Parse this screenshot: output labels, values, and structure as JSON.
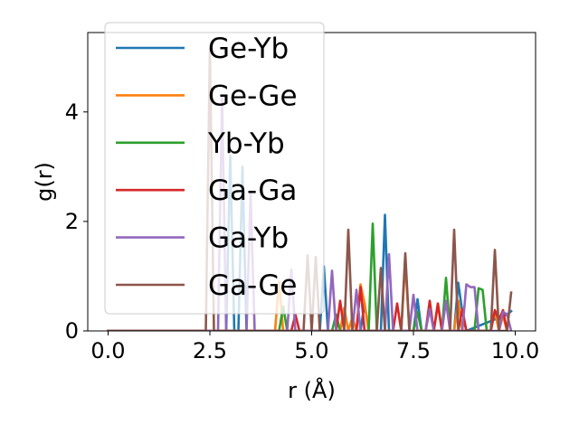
{
  "chart_data": {
    "type": "line",
    "title": "",
    "xlabel": "r (Å)",
    "ylabel": "g(r)",
    "xlim": [
      -0.5,
      10.5
    ],
    "ylim": [
      0,
      5.45
    ],
    "xticks": [
      0.0,
      2.5,
      5.0,
      7.5,
      10.0
    ],
    "xtick_labels": [
      "0.0",
      "2.5",
      "5.0",
      "7.5",
      "10.0"
    ],
    "yticks": [
      0,
      2,
      4
    ],
    "ytick_labels": [
      "0",
      "2",
      "4"
    ],
    "grid": false,
    "legend_position": "upper-left",
    "series": [
      {
        "name": "Ge-Yb",
        "color": "#1f77b4",
        "x": [
          0,
          2.9,
          3.0,
          3.1,
          3.2,
          3.3,
          3.4,
          5.2,
          5.3,
          5.4,
          6.2,
          6.3,
          6.4,
          6.7,
          6.8,
          6.9,
          7.5,
          7.6,
          7.7,
          8.5,
          8.6,
          8.7,
          8.8,
          9.8,
          9.9
        ],
        "y": [
          0,
          0,
          3.2,
          0,
          0,
          3.0,
          0,
          0,
          1.18,
          0,
          0,
          0.5,
          0,
          0,
          2.12,
          0,
          0,
          0.58,
          0,
          0,
          0.88,
          0.35,
          0,
          0.3,
          0.36
        ]
      },
      {
        "name": "Ge-Ge",
        "color": "#ff7f0e",
        "x": [
          0,
          4.1,
          4.2,
          4.3,
          5.7,
          5.8,
          5.9,
          6.0,
          6.1,
          6.2,
          6.3,
          6.4,
          7.2,
          7.3,
          7.4,
          8.0,
          8.1,
          8.2,
          8.5,
          8.6,
          8.7,
          9.4,
          9.5,
          9.6,
          9.7,
          9.8
        ],
        "y": [
          0,
          0,
          0.9,
          0,
          0,
          0.42,
          0,
          0.25,
          0,
          0.85,
          0.5,
          0,
          0,
          1.27,
          0,
          0,
          0.5,
          0,
          0,
          0.55,
          0,
          0,
          0.36,
          0,
          0.28,
          0
        ]
      },
      {
        "name": "Yb-Yb",
        "color": "#2ca02c",
        "x": [
          0,
          4.2,
          4.3,
          4.4,
          5.5,
          5.6,
          5.7,
          6.4,
          6.5,
          6.6,
          7.5,
          7.6,
          7.7,
          8.2,
          8.3,
          8.4,
          9.0,
          9.1,
          9.2,
          9.3,
          9.4
        ],
        "y": [
          0,
          0,
          0.45,
          0,
          0,
          0.3,
          0,
          0,
          1.96,
          0,
          0,
          0.35,
          0,
          0,
          0.97,
          0,
          0,
          0.78,
          0.75,
          0,
          0
        ]
      },
      {
        "name": "Ga-Ga",
        "color": "#d62728",
        "x": [
          0,
          4.5,
          4.6,
          4.7,
          5.6,
          5.7,
          5.8,
          6.1,
          6.2,
          6.3,
          7.0,
          7.1,
          7.2,
          7.8,
          7.9,
          8.0,
          8.1,
          8.2,
          8.6,
          8.7,
          8.8,
          9.4,
          9.5,
          9.6,
          9.7,
          9.8
        ],
        "y": [
          0,
          0,
          0.3,
          0,
          0,
          0.55,
          0,
          0,
          0.8,
          0,
          0,
          0.5,
          0,
          0,
          0.55,
          0,
          0.5,
          0,
          0,
          0.4,
          0,
          0,
          0.38,
          0.2,
          0.38,
          0
        ]
      },
      {
        "name": "Ga-Yb",
        "color": "#9467bd",
        "x": [
          0,
          2.7,
          2.8,
          2.9,
          3.4,
          3.5,
          3.6,
          4.4,
          4.5,
          4.6,
          5.4,
          5.5,
          5.6,
          6.0,
          6.1,
          6.2,
          6.8,
          6.9,
          7.0,
          7.4,
          7.5,
          7.6,
          7.8,
          7.9,
          8.0,
          8.2,
          8.3,
          8.4,
          8.7,
          8.8,
          8.9,
          9.0,
          9.1,
          9.6,
          9.7,
          9.8,
          9.9
        ],
        "y": [
          0,
          0,
          4.3,
          0,
          0,
          2.5,
          0,
          0,
          1.12,
          0,
          0,
          1.1,
          0,
          0,
          0.75,
          0,
          0,
          1.4,
          0,
          0,
          0.66,
          0,
          0,
          0.4,
          0,
          0,
          0.55,
          0,
          0,
          0.85,
          0.8,
          0.8,
          0,
          0,
          0.35,
          0.3,
          0
        ]
      },
      {
        "name": "Ga-Ge",
        "color": "#8c564b",
        "x": [
          0,
          2.4,
          2.5,
          2.6,
          4.8,
          4.9,
          5.0,
          5.1,
          5.2,
          5.8,
          5.9,
          6.0,
          6.6,
          6.7,
          6.8,
          7.2,
          7.3,
          7.4,
          8.4,
          8.5,
          8.6,
          9.4,
          9.5,
          9.6,
          9.8,
          9.9
        ],
        "y": [
          0,
          0,
          5.15,
          0,
          0,
          1.38,
          0,
          1.35,
          0,
          0,
          1.85,
          0,
          0,
          1.15,
          0,
          0,
          1.42,
          0,
          0,
          1.85,
          0,
          0,
          1.48,
          0,
          0,
          0.7
        ]
      }
    ]
  }
}
